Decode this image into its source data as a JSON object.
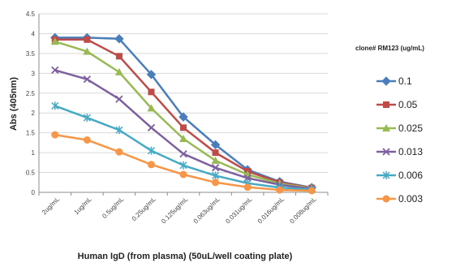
{
  "chart_data": {
    "type": "line",
    "title": "",
    "xlabel": "Human IgD (from plasma) (50uL/well coating plate)",
    "ylabel": "Abs (405nm)",
    "ylim": [
      0,
      4.5
    ],
    "yticks": [
      "0",
      "0.5",
      "1",
      "1.5",
      "2",
      "2.5",
      "3",
      "3.5",
      "4",
      "4.5"
    ],
    "grid": true,
    "legend_position": "right",
    "legend_title": "clone# RM123 (ug/mL)",
    "categories": [
      "2ug/mL",
      "1ug/mL",
      "0.5ug/mL",
      "0.25ug/mL",
      "0.125ug/mL",
      "0.063ug/mL",
      "0.031ug/mL",
      "0.016ug/mL",
      "0.008ug/mL"
    ],
    "series": [
      {
        "name": "0.1",
        "color": "#4a7ebb",
        "marker": "diamond",
        "values": [
          3.9,
          3.9,
          3.87,
          2.97,
          1.9,
          1.2,
          0.57,
          0.27,
          0.12
        ]
      },
      {
        "name": "0.05",
        "color": "#be4b48",
        "marker": "square",
        "values": [
          3.85,
          3.85,
          3.43,
          2.53,
          1.63,
          1.0,
          0.53,
          0.25,
          0.11
        ]
      },
      {
        "name": "0.025",
        "color": "#98b954",
        "marker": "triangle",
        "values": [
          3.8,
          3.55,
          3.03,
          2.12,
          1.35,
          0.8,
          0.45,
          0.22,
          0.1
        ]
      },
      {
        "name": "0.013",
        "color": "#7d60a0",
        "marker": "x",
        "values": [
          3.08,
          2.85,
          2.35,
          1.63,
          0.97,
          0.62,
          0.36,
          0.19,
          0.09
        ]
      },
      {
        "name": "0.006",
        "color": "#46aac5",
        "marker": "star",
        "values": [
          2.18,
          1.88,
          1.57,
          1.05,
          0.68,
          0.42,
          0.23,
          0.12,
          0.07
        ]
      },
      {
        "name": "0.003",
        "color": "#f79646",
        "marker": "circle",
        "values": [
          1.45,
          1.32,
          1.02,
          0.7,
          0.45,
          0.25,
          0.13,
          0.06,
          0.04
        ]
      }
    ]
  }
}
